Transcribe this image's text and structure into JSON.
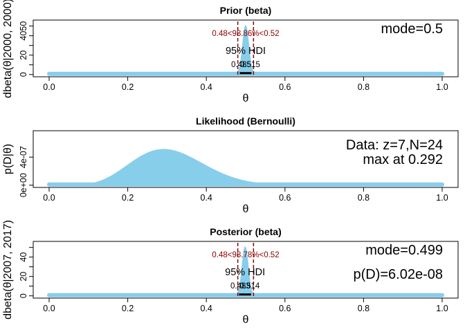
{
  "chart_data": [
    {
      "type": "area",
      "title": "Prior (beta)",
      "xlabel": "θ",
      "ylabel": "dbeta(θ|2000, 2000)",
      "xlim": [
        0,
        1
      ],
      "ylim": [
        0,
        55
      ],
      "x_ticks": [
        0.0,
        0.2,
        0.4,
        0.6,
        0.8,
        1.0
      ],
      "x_tick_labels": [
        "0.0",
        "0.2",
        "0.4",
        "0.6",
        "0.8",
        "1.0"
      ],
      "y_ticks": [
        0,
        10,
        20,
        30,
        40,
        50
      ],
      "y_tick_labels": [
        "0",
        "",
        "20",
        "",
        "40",
        ""
      ],
      "y_tick_labels_extra": {
        "50": "50"
      },
      "distribution": {
        "family": "beta",
        "a": 2000,
        "b": 2000
      },
      "mode_text": "mode=0.5",
      "hdi": {
        "label": "95% HDI",
        "low": 0.485,
        "high": 0.515,
        "low_label": "0.485",
        "high_label": "0.515"
      },
      "rope": {
        "low": 0.48,
        "high": 0.52,
        "text": "0.48<98.86%<0.52"
      },
      "grid": false,
      "fill_color": "#87ceeb",
      "rope_color": "#8b0000"
    },
    {
      "type": "area",
      "title": "Likelihood (Bernoulli)",
      "xlabel": "θ",
      "ylabel": "p(D|θ)",
      "xlim": [
        0,
        1
      ],
      "ylim": [
        0,
        7.6e-07
      ],
      "x_ticks": [
        0.0,
        0.2,
        0.4,
        0.6,
        0.8,
        1.0
      ],
      "x_tick_labels": [
        "0.0",
        "0.2",
        "0.4",
        "0.6",
        "0.8",
        "1.0"
      ],
      "y_ticks": [
        0,
        4e-07
      ],
      "y_tick_labels": [
        "0e+00",
        "4e-07"
      ],
      "distribution": {
        "family": "bernoulli",
        "z": 7,
        "N": 24
      },
      "data_text": "Data: z=7,N=24",
      "max_text": "max at 0.292",
      "grid": false,
      "fill_color": "#87ceeb"
    },
    {
      "type": "area",
      "title": "Posterior (beta)",
      "xlabel": "θ",
      "ylabel": "dbeta(θ|2007, 2017)",
      "xlim": [
        0,
        1
      ],
      "ylim": [
        0,
        55
      ],
      "x_ticks": [
        0.0,
        0.2,
        0.4,
        0.6,
        0.8,
        1.0
      ],
      "x_tick_labels": [
        "0.0",
        "0.2",
        "0.4",
        "0.6",
        "0.8",
        "1.0"
      ],
      "y_ticks": [
        0,
        10,
        20,
        30,
        40,
        50
      ],
      "y_tick_labels": [
        "0",
        "",
        "20",
        "",
        "40",
        ""
      ],
      "distribution": {
        "family": "beta",
        "a": 2007,
        "b": 2017
      },
      "mode_text": "mode=0.499",
      "evidence_text": "p(D)=6.02e-08",
      "hdi": {
        "label": "95% HDI",
        "low": 0.483,
        "high": 0.514,
        "low_label": "0.483",
        "high_label": "0.514"
      },
      "rope": {
        "low": 0.48,
        "high": 0.52,
        "text": "0.48<98.78%<0.52"
      },
      "grid": false,
      "fill_color": "#87ceeb",
      "rope_color": "#8b0000"
    }
  ]
}
